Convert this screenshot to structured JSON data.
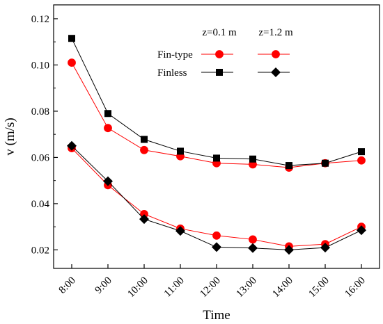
{
  "chart_data": {
    "type": "line",
    "categories": [
      "8:00",
      "9:00",
      "10:00",
      "11:00",
      "12:00",
      "13:00",
      "14:00",
      "15:00",
      "16:00"
    ],
    "xlabel": "Time",
    "ylabel": "v (m/s)",
    "ylim": [
      0.012,
      0.126
    ],
    "yticks": [
      0.02,
      0.04,
      0.06,
      0.08,
      0.1,
      0.12
    ],
    "ytick_labels": [
      "0.02",
      "0.04",
      "0.06",
      "0.08",
      "0.10",
      "0.12"
    ],
    "grid": false,
    "legend": {
      "position": "top-right",
      "column_headers": [
        "z=0.1 m",
        "z=1.2 m"
      ],
      "row_labels": [
        "Fin-type",
        "Finless"
      ]
    },
    "series": [
      {
        "group": "Fin-type",
        "height": "z=0.1 m",
        "marker": "circle",
        "color": "#ff0000",
        "values": [
          0.101,
          0.0727,
          0.0632,
          0.0605,
          0.0575,
          0.057,
          0.0556,
          0.0575,
          0.0587
        ]
      },
      {
        "group": "Finless",
        "height": "z=0.1 m",
        "marker": "square",
        "color": "#000000",
        "values": [
          0.1115,
          0.079,
          0.0678,
          0.0627,
          0.0597,
          0.0593,
          0.0565,
          0.0575,
          0.0625
        ]
      },
      {
        "group": "Fin-type",
        "height": "z=1.2 m",
        "marker": "circle",
        "color": "#ff0000",
        "values": [
          0.064,
          0.048,
          0.0355,
          0.0292,
          0.0262,
          0.0245,
          0.0215,
          0.0225,
          0.03
        ]
      },
      {
        "group": "Finless",
        "height": "z=1.2 m",
        "marker": "diamond",
        "color": "#000000",
        "values": [
          0.065,
          0.0497,
          0.0333,
          0.0282,
          0.0212,
          0.0208,
          0.02,
          0.021,
          0.0285
        ]
      }
    ]
  }
}
